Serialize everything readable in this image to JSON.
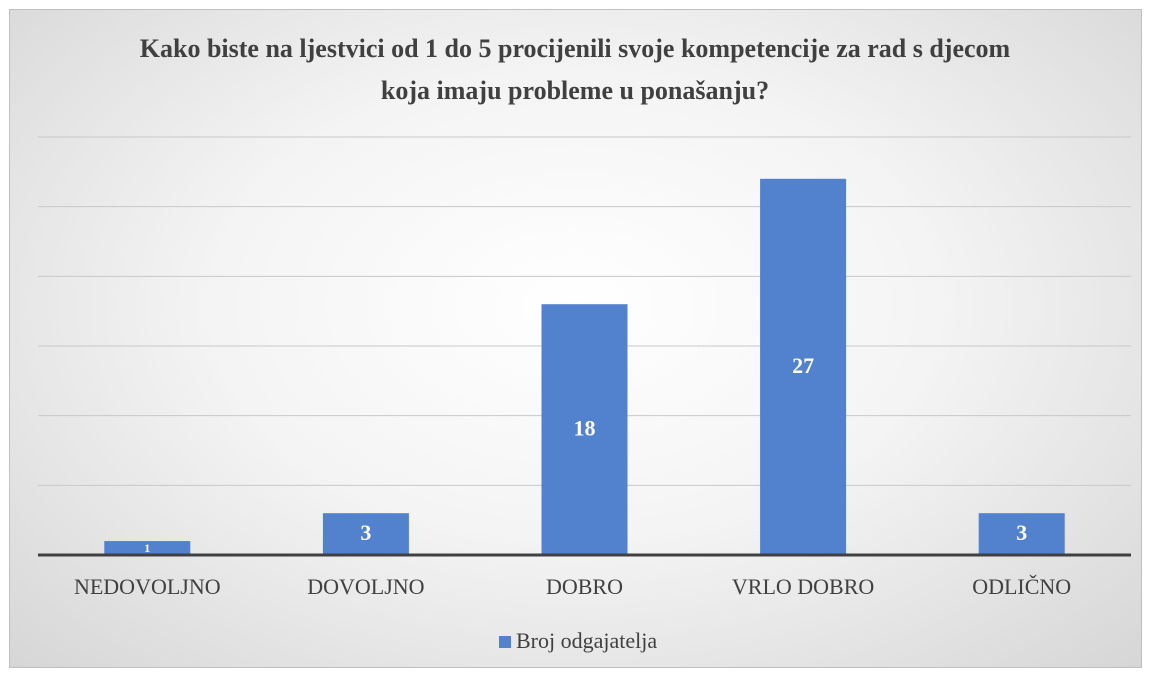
{
  "chart_data": {
    "type": "bar",
    "title": "Kako biste na ljestvici od 1 do 5 procijenili svoje kompetencije za rad s djecom koja imaju probleme u ponašanju?",
    "categories": [
      "NEDOVOLJNO",
      "DOVOLJNO",
      "DOBRO",
      "VRLO DOBRO",
      "ODLIČNO"
    ],
    "series": [
      {
        "name": "Broj odgajatelja",
        "color": "#5281cd",
        "values": [
          1,
          3,
          18,
          27,
          3
        ]
      }
    ],
    "ylim": [
      0,
      30
    ],
    "yticks": [
      0,
      5,
      10,
      15,
      20,
      25,
      30
    ],
    "grid": true,
    "legend": "bottom"
  }
}
